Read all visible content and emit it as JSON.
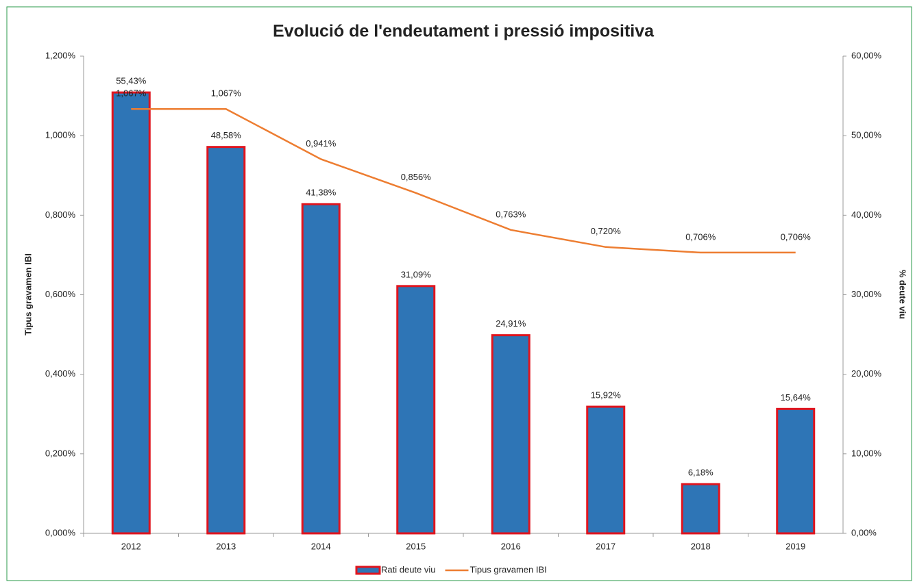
{
  "chart_data": {
    "type": "combo",
    "title": "Evolució de l'endeutament i pressió impositiva",
    "ylabel": "Tipus gravamen IBI",
    "y2label": "% deute viu",
    "categories": [
      "2012",
      "2013",
      "2014",
      "2015",
      "2016",
      "2017",
      "2018",
      "2019"
    ],
    "ylim": [
      0,
      1.2
    ],
    "yticks": [
      {
        "value": 0,
        "label": "0,000%"
      },
      {
        "value": 0.2,
        "label": "0,200%"
      },
      {
        "value": 0.4,
        "label": "0,400%"
      },
      {
        "value": 0.6,
        "label": "0,600%"
      },
      {
        "value": 0.8,
        "label": "0,800%"
      },
      {
        "value": 1.0,
        "label": "1,000%"
      },
      {
        "value": 1.2,
        "label": "1,200%"
      }
    ],
    "y2lim": [
      0,
      60
    ],
    "y2ticks": [
      {
        "value": 0,
        "label": "0,00%"
      },
      {
        "value": 10,
        "label": "10,00%"
      },
      {
        "value": 20,
        "label": "20,00%"
      },
      {
        "value": 30,
        "label": "30,00%"
      },
      {
        "value": 40,
        "label": "40,00%"
      },
      {
        "value": 50,
        "label": "50,00%"
      },
      {
        "value": 60,
        "label": "60,00%"
      }
    ],
    "grid": false,
    "legend": "bottom",
    "series": [
      {
        "name": "Rati deute viu",
        "type": "bar",
        "axis": "y2",
        "color": "#2e75b6",
        "edgecolor": "#e0141e",
        "values": [
          55.43,
          48.58,
          41.38,
          31.09,
          24.91,
          15.92,
          6.18,
          15.64
        ],
        "value_labels": [
          "55,43%",
          "48,58%",
          "41,38%",
          "31,09%",
          "24,91%",
          "15,92%",
          "6,18%",
          "15,64%"
        ]
      },
      {
        "name": "Tipus gravamen IBI",
        "type": "line",
        "axis": "y",
        "color": "#ed7d31",
        "values": [
          1.067,
          1.067,
          0.941,
          0.856,
          0.763,
          0.72,
          0.706,
          0.706
        ],
        "value_labels": [
          "1,067%",
          "1,067%",
          "0,941%",
          "0,856%",
          "0,763%",
          "0,720%",
          "0,706%",
          "0,706%"
        ]
      }
    ]
  }
}
